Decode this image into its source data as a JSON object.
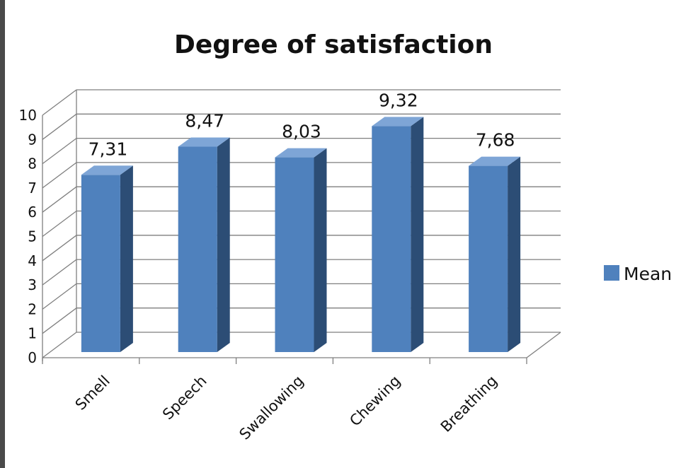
{
  "chart_data": {
    "type": "bar",
    "title": "Degree of satisfaction",
    "categories": [
      "Smell",
      "Speech",
      "Swallowing",
      "Chewing",
      "Breathing"
    ],
    "series": [
      {
        "name": "Mean",
        "values": [
          7.31,
          8.47,
          8.03,
          9.32,
          7.68
        ]
      }
    ],
    "data_labels": [
      "7,31",
      "8,47",
      "8,03",
      "9,32",
      "7,68"
    ],
    "ylim": [
      0,
      10
    ],
    "yticks": [
      "0",
      "1",
      "2",
      "3",
      "4",
      "5",
      "6",
      "7",
      "8",
      "9",
      "10"
    ],
    "grid": true,
    "legend": "right",
    "style": "3d-column",
    "colors": {
      "bar_front": "#4f81bd",
      "bar_side": "#2c4d75",
      "bar_top": "#7ea5d6",
      "grid": "#7f7f7f"
    }
  }
}
